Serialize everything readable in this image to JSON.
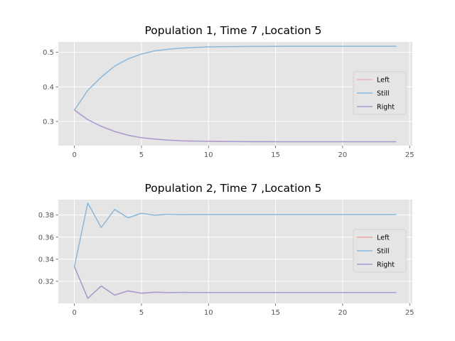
{
  "chart_data": [
    {
      "type": "line",
      "title": "Population 1, Time 7 ,Location 5",
      "xlabel": "",
      "ylabel": "",
      "xlim": [
        -1.2,
        25.2
      ],
      "ylim": [
        0.23,
        0.53
      ],
      "xticks": [
        0,
        5,
        10,
        15,
        20,
        25
      ],
      "yticks": [
        0.3,
        0.4,
        0.5
      ],
      "ytick_labels": [
        "0.3",
        "0.4",
        "0.5"
      ],
      "grid": true,
      "legend_position": "center-right",
      "x": [
        0,
        1,
        2,
        3,
        4,
        5,
        6,
        7,
        8,
        9,
        10,
        11,
        12,
        13,
        14,
        15,
        16,
        17,
        18,
        19,
        20,
        21,
        22,
        23,
        24
      ],
      "series": [
        {
          "name": "Left",
          "color": "#e8b4b4",
          "values": [
            0.333,
            0.305,
            0.286,
            0.271,
            0.26,
            0.253,
            0.249,
            0.246,
            0.244,
            0.243,
            0.2425,
            0.242,
            0.2418,
            0.2416,
            0.2415,
            0.2414,
            0.2414,
            0.2413,
            0.2413,
            0.2413,
            0.2413,
            0.2413,
            0.2413,
            0.2413,
            0.2413
          ]
        },
        {
          "name": "Still",
          "color": "#8bb8d8",
          "values": [
            0.333,
            0.39,
            0.428,
            0.46,
            0.481,
            0.495,
            0.504,
            0.509,
            0.512,
            0.514,
            0.5155,
            0.516,
            0.5165,
            0.5168,
            0.517,
            0.5172,
            0.5173,
            0.5174,
            0.5174,
            0.5174,
            0.5174,
            0.5174,
            0.5174,
            0.5174,
            0.5174
          ]
        },
        {
          "name": "Right",
          "color": "#a99ad2",
          "values": [
            0.333,
            0.305,
            0.286,
            0.271,
            0.26,
            0.253,
            0.249,
            0.246,
            0.244,
            0.243,
            0.2425,
            0.242,
            0.2418,
            0.2416,
            0.2415,
            0.2414,
            0.2414,
            0.2413,
            0.2413,
            0.2413,
            0.2413,
            0.2413,
            0.2413,
            0.2413,
            0.2413
          ]
        }
      ]
    },
    {
      "type": "line",
      "title": "Population 2, Time 7 ,Location 5",
      "xlabel": "",
      "ylabel": "",
      "xlim": [
        -1.2,
        25.2
      ],
      "ylim": [
        0.3,
        0.394
      ],
      "xticks": [
        0,
        5,
        10,
        15,
        20,
        25
      ],
      "yticks": [
        0.32,
        0.34,
        0.36,
        0.38
      ],
      "ytick_labels": [
        "0.32",
        "0.34",
        "0.36",
        "0.38"
      ],
      "grid": true,
      "legend_position": "center-right",
      "x": [
        0,
        1,
        2,
        3,
        4,
        5,
        6,
        7,
        8,
        9,
        10,
        11,
        12,
        13,
        14,
        15,
        16,
        17,
        18,
        19,
        20,
        21,
        22,
        23,
        24
      ],
      "series": [
        {
          "name": "Left",
          "color": "#e8a8a8",
          "values": [
            0.3333,
            0.3045,
            0.3157,
            0.3075,
            0.3113,
            0.3092,
            0.3101,
            0.3097,
            0.3099,
            0.3098,
            0.3098,
            0.3098,
            0.3098,
            0.3098,
            0.3098,
            0.3098,
            0.3098,
            0.3098,
            0.3098,
            0.3098,
            0.3098,
            0.3098,
            0.3098,
            0.3098,
            0.3098
          ]
        },
        {
          "name": "Still",
          "color": "#8bb8d8",
          "values": [
            0.3333,
            0.3909,
            0.3687,
            0.3851,
            0.3775,
            0.3816,
            0.3798,
            0.3807,
            0.3803,
            0.3805,
            0.3804,
            0.3804,
            0.3804,
            0.3804,
            0.3804,
            0.3804,
            0.3804,
            0.3804,
            0.3804,
            0.3804,
            0.3804,
            0.3804,
            0.3804,
            0.3804,
            0.3804
          ]
        },
        {
          "name": "Right",
          "color": "#a99ad2",
          "values": [
            0.3333,
            0.3045,
            0.3157,
            0.3075,
            0.3113,
            0.3092,
            0.3101,
            0.3097,
            0.3099,
            0.3098,
            0.3098,
            0.3098,
            0.3098,
            0.3098,
            0.3098,
            0.3098,
            0.3098,
            0.3098,
            0.3098,
            0.3098,
            0.3098,
            0.3098,
            0.3098,
            0.3098,
            0.3098
          ]
        }
      ]
    }
  ]
}
